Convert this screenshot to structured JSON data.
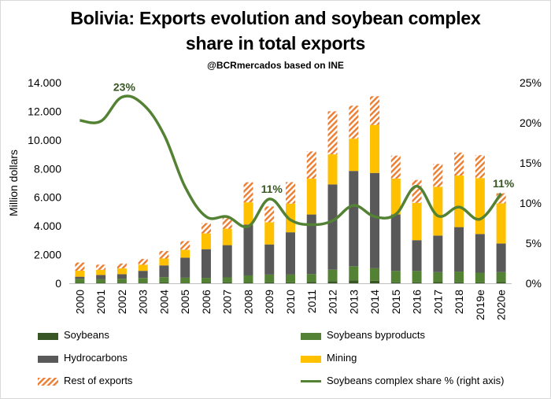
{
  "title_line1": "Bolivia: Exports evolution and soybean complex",
  "title_line2": "share in total exports",
  "subtitle": "@BCRmercados based on INE",
  "colors": {
    "soybeans": "#375623",
    "byproducts": "#548235",
    "hydrocarbons": "#595959",
    "mining": "#ffc000",
    "rest_stripe": "#ed7d31",
    "share_line": "#548235",
    "axis_text": "#000000",
    "annotation": "#375623"
  },
  "chart_data": {
    "type": "bar",
    "stacked": true,
    "categories": [
      "2000",
      "2001",
      "2002",
      "2003",
      "2004",
      "2005",
      "2006",
      "2007",
      "2008",
      "2009",
      "2010",
      "2011",
      "2012",
      "2013",
      "2014",
      "2015",
      "2016",
      "2017",
      "2018",
      "2019e",
      "2020e"
    ],
    "series": [
      {
        "name": "Soybeans",
        "values": [
          30,
          30,
          40,
          40,
          60,
          40,
          50,
          60,
          50,
          60,
          60,
          100,
          150,
          210,
          180,
          70,
          70,
          80,
          70,
          60,
          80
        ]
      },
      {
        "name": "Soybeans byproducts",
        "values": [
          280,
          250,
          280,
          330,
          370,
          350,
          330,
          350,
          500,
          550,
          550,
          550,
          800,
          980,
          870,
          790,
          790,
          700,
          750,
          680,
          700
        ]
      },
      {
        "name": "Hydrocarbons",
        "values": [
          150,
          300,
          320,
          500,
          820,
          1400,
          2000,
          2250,
          3550,
          2100,
          2950,
          4150,
          5950,
          6650,
          6650,
          3950,
          2150,
          2550,
          3100,
          2700,
          2000
        ]
      },
      {
        "name": "Mining",
        "values": [
          420,
          360,
          400,
          420,
          480,
          550,
          1100,
          1150,
          1550,
          1550,
          2000,
          2500,
          2100,
          2250,
          3350,
          2500,
          2600,
          3400,
          3600,
          3900,
          2800
        ]
      },
      {
        "name": "Rest of exports",
        "values": [
          570,
          360,
          340,
          410,
          520,
          600,
          720,
          800,
          1400,
          1100,
          1500,
          1900,
          3000,
          2300,
          2000,
          1600,
          1600,
          1600,
          1600,
          1600,
          700
        ]
      }
    ],
    "line_series": {
      "name": "Soybeans complex share % (right axis)",
      "axis": "right",
      "values": [
        20.3,
        20.2,
        23.2,
        22.3,
        18.5,
        12.0,
        8.3,
        8.3,
        7.1,
        10.5,
        7.9,
        7.3,
        7.8,
        9.7,
        8.3,
        8.6,
        12.1,
        8.4,
        9.5,
        8.0,
        11.2
      ]
    },
    "annotations": [
      {
        "text": "23%",
        "category": "2002",
        "value": 23.2
      },
      {
        "text": "11%",
        "category": "2009",
        "value": 10.5
      },
      {
        "text": "11%",
        "category": "2020e",
        "value": 11.2
      }
    ],
    "ylabel": "Million dollars",
    "ylim": [
      0,
      14000
    ],
    "y_ticks": [
      "0",
      "2.000",
      "4.000",
      "6.000",
      "8.000",
      "10.000",
      "12.000",
      "14.000"
    ],
    "y_tick_values": [
      0,
      2000,
      4000,
      6000,
      8000,
      10000,
      12000,
      14000
    ],
    "y2lim": [
      0,
      25
    ],
    "y2_ticks": [
      "0%",
      "5%",
      "10%",
      "15%",
      "20%",
      "25%"
    ],
    "y2_tick_values": [
      0,
      5,
      10,
      15,
      20,
      25
    ],
    "grid": false,
    "legend_position": "bottom"
  },
  "legend": {
    "soybeans": "Soybeans",
    "byproducts": "Soybeans byproducts",
    "hydrocarbons": "Hydrocarbons",
    "mining": "Mining",
    "rest": "Rest of exports",
    "share": "Soybeans complex share % (right axis)"
  }
}
